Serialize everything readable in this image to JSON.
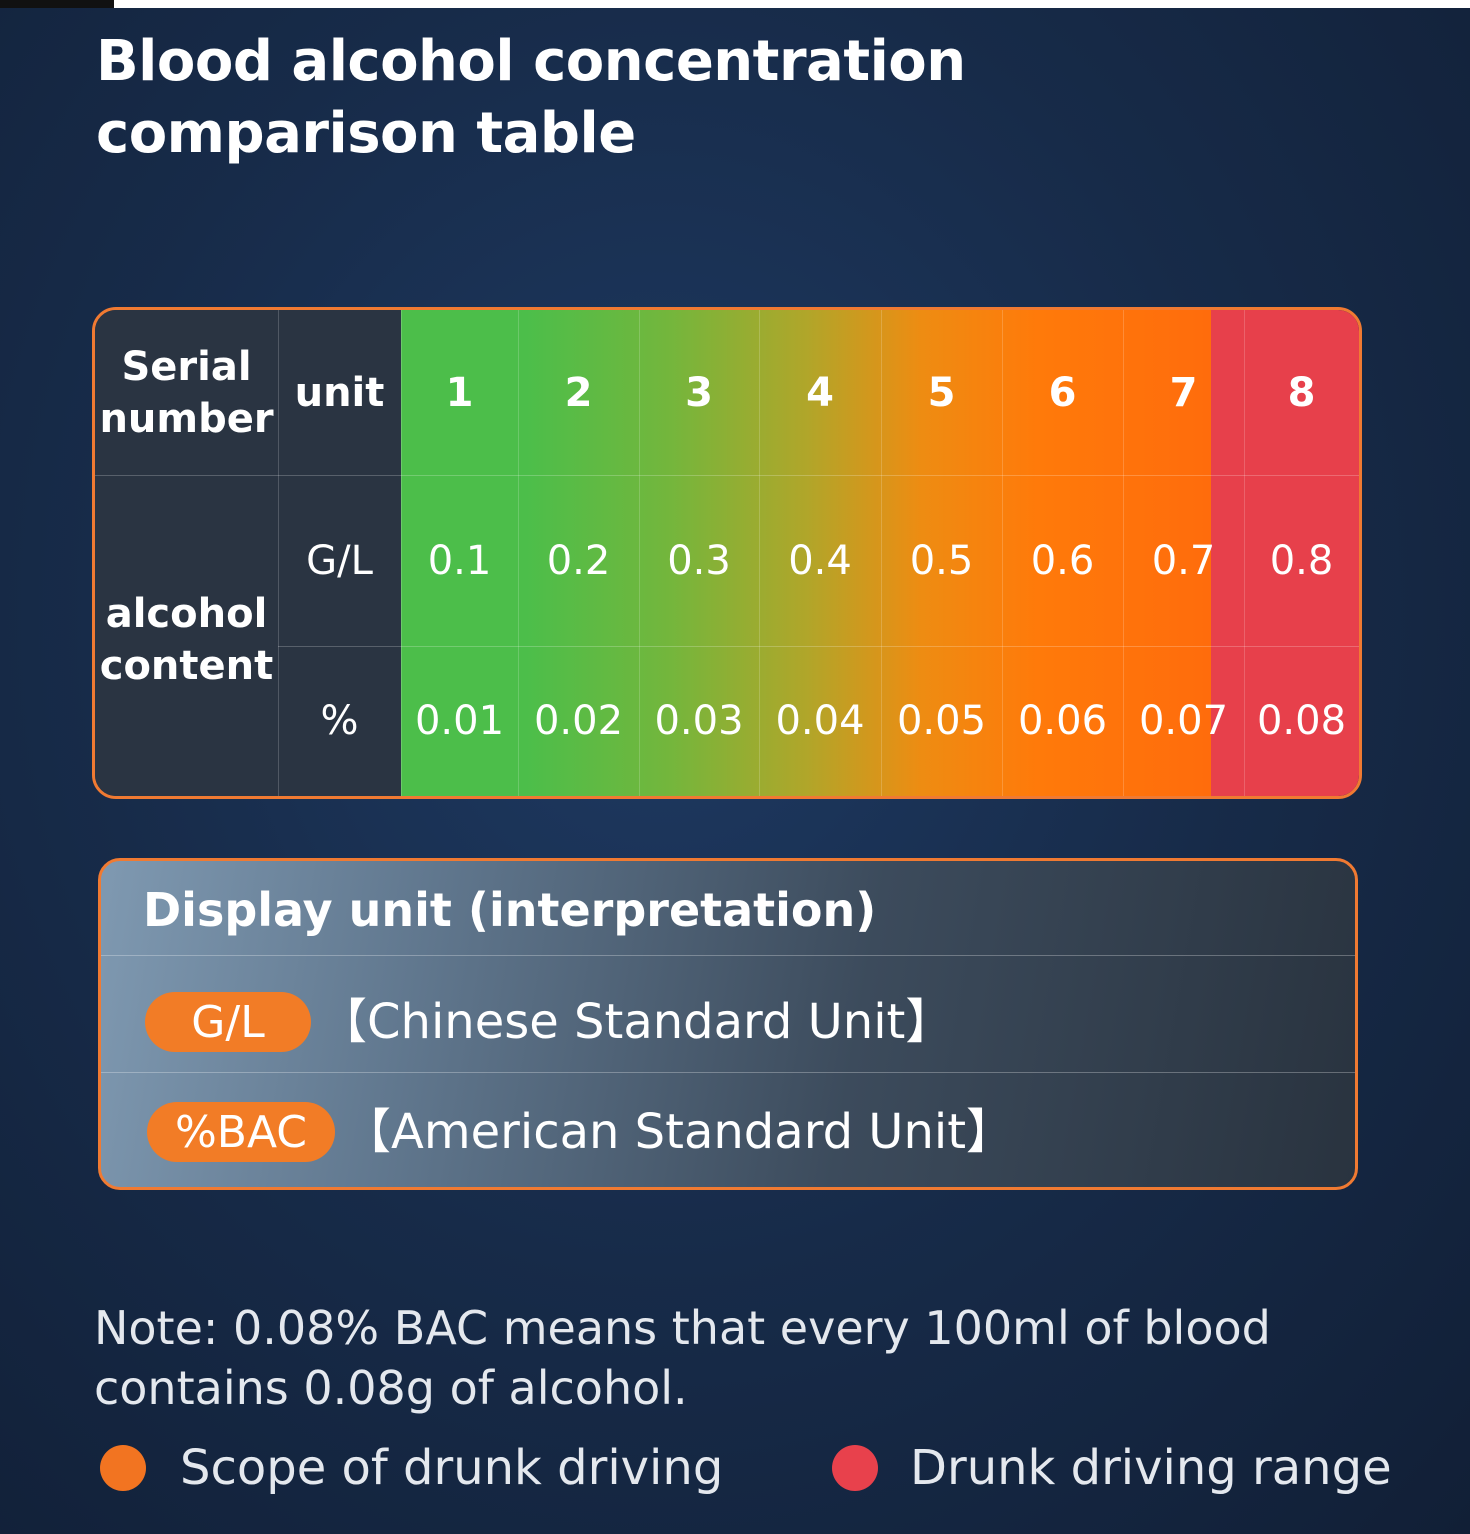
{
  "title": "Blood alcohol concentration comparison table",
  "table": {
    "serial_header": "Serial number",
    "unit_header": "unit",
    "content_label": "alcohol content",
    "units": [
      "G/L",
      "%"
    ],
    "serials": [
      "1",
      "2",
      "3",
      "4",
      "5",
      "6",
      "7",
      "8"
    ],
    "gl_values": [
      "0.1",
      "0.2",
      "0.3",
      "0.4",
      "0.5",
      "0.6",
      "0.7",
      "0.8"
    ],
    "pct_values": [
      "0.01",
      "0.02",
      "0.03",
      "0.04",
      "0.05",
      "0.06",
      "0.07",
      "0.08"
    ],
    "colors": {
      "green": "#4cbe4a",
      "orange": "#ff7a0a",
      "red": "#e7404b",
      "border": "#f07a32"
    }
  },
  "display_units": {
    "title": "Display unit (interpretation)",
    "items": [
      {
        "badge": "G/L",
        "description": "【Chinese Standard Unit】"
      },
      {
        "badge": "%BAC",
        "description": "【American Standard Unit】"
      }
    ]
  },
  "note": "Note: 0.08% BAC means that every 100ml of blood contains 0.08g of alcohol.",
  "legend": [
    {
      "label": "Scope of drunk driving",
      "color": "#f27421"
    },
    {
      "label": "Drunk driving range",
      "color": "#e8414c"
    }
  ]
}
